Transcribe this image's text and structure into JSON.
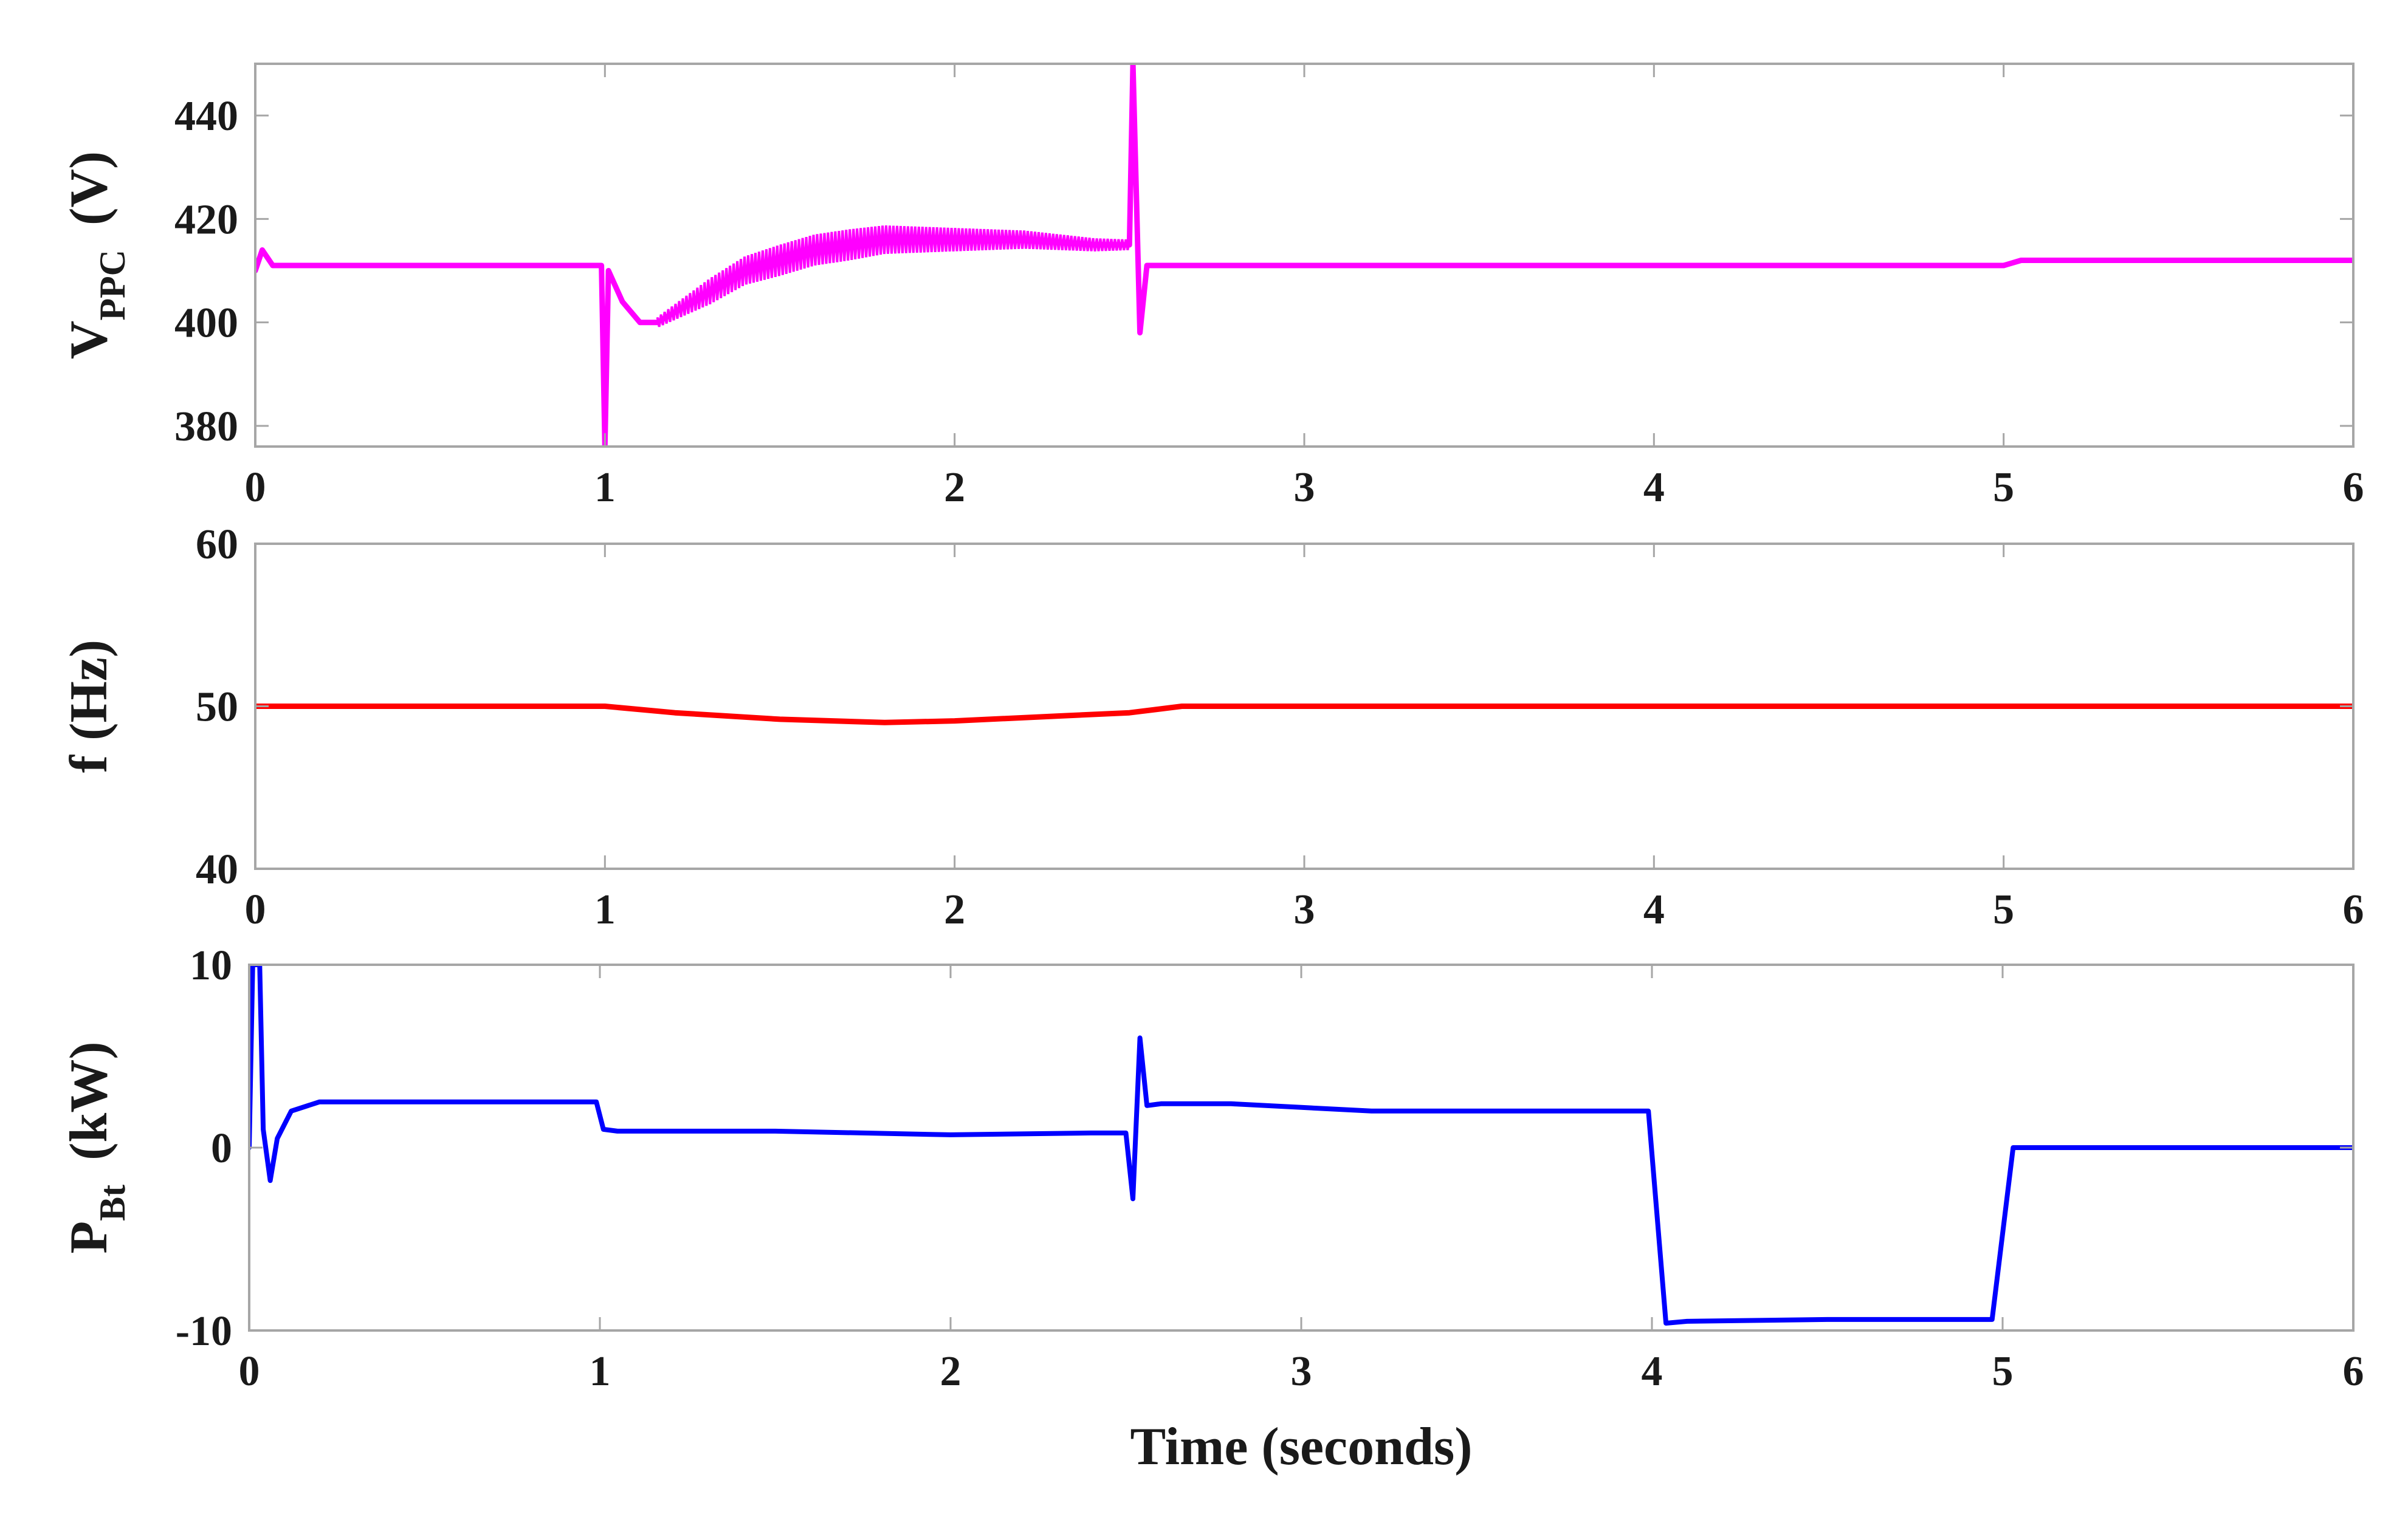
{
  "chart_data": [
    {
      "type": "line",
      "ylabel_main": "V",
      "ylabel_sub": "PPC",
      "ylabel_unit": "(V)",
      "xlim": [
        0,
        6
      ],
      "ylim": [
        376,
        450
      ],
      "xticks": [
        "0",
        "1",
        "2",
        "3",
        "4",
        "5",
        "6"
      ],
      "yticks": [
        "380",
        "400",
        "420",
        "440"
      ],
      "ytick_values": [
        380,
        400,
        420,
        440
      ],
      "color": "#ff00ff",
      "series": [
        {
          "x": [
            0,
            0.02,
            0.05,
            0.4,
            0.99,
            1.0,
            1.01,
            1.05,
            1.1,
            1.15,
            1.2,
            1.3,
            1.4,
            1.5,
            1.6,
            1.7,
            1.8,
            1.9,
            2.0,
            2.2,
            2.4,
            2.5,
            2.51,
            2.53,
            2.55,
            2.6,
            3.0,
            4.0,
            4.99,
            5.0,
            5.05,
            6.0
          ],
          "y": [
            410,
            414,
            411,
            411,
            411,
            376,
            410,
            404,
            400,
            400,
            402,
            406,
            410,
            412,
            414,
            415,
            416,
            416,
            416,
            416,
            415,
            415,
            450,
            398,
            411,
            411,
            411,
            411,
            411,
            411,
            412,
            412
          ]
        }
      ],
      "oscillation_band": {
        "x": [
          1.15,
          1.3,
          1.5,
          1.7,
          1.9,
          2.1,
          2.3,
          2.5
        ],
        "amplitude": [
          1,
          2.5,
          3,
          3,
          2.5,
          2,
          1.5,
          1
        ]
      }
    },
    {
      "type": "line",
      "ylabel_main": "f",
      "ylabel_sub": "",
      "ylabel_unit": "(Hz)",
      "xlim": [
        0,
        6
      ],
      "ylim": [
        40,
        60
      ],
      "xticks": [
        "0",
        "1",
        "2",
        "3",
        "4",
        "5",
        "6"
      ],
      "yticks": [
        "40",
        "50",
        "60"
      ],
      "ytick_values": [
        40,
        50,
        60
      ],
      "color": "#ff0000",
      "series": [
        {
          "x": [
            0,
            1.0,
            1.2,
            1.5,
            1.8,
            2.0,
            2.3,
            2.5,
            2.65,
            3.0,
            6.0
          ],
          "y": [
            50,
            50,
            49.6,
            49.2,
            49.0,
            49.1,
            49.4,
            49.6,
            50,
            50,
            50
          ]
        }
      ]
    },
    {
      "type": "line",
      "ylabel_main": "P",
      "ylabel_sub": "Bt",
      "ylabel_unit": "(kW)",
      "xlabel": "Time (seconds)",
      "xlim": [
        0,
        6
      ],
      "ylim": [
        -10,
        10
      ],
      "xticks": [
        "0",
        "1",
        "2",
        "3",
        "4",
        "5",
        "6"
      ],
      "yticks": [
        "-10",
        "0",
        "10"
      ],
      "ytick_values": [
        -10,
        0,
        10
      ],
      "color": "#0000ff",
      "series": [
        {
          "x": [
            0,
            0.01,
            0.03,
            0.04,
            0.06,
            0.08,
            0.12,
            0.2,
            0.5,
            0.99,
            1.01,
            1.05,
            1.5,
            2.0,
            2.4,
            2.5,
            2.52,
            2.54,
            2.56,
            2.6,
            2.8,
            3.0,
            3.2,
            3.5,
            3.8,
            3.99,
            4.04,
            4.1,
            4.5,
            4.97,
            5.03,
            5.1,
            6.0
          ],
          "y": [
            0,
            10,
            10,
            1,
            -1.8,
            0.5,
            2,
            2.5,
            2.5,
            2.5,
            1,
            0.9,
            0.9,
            0.7,
            0.8,
            0.8,
            -2.8,
            6,
            2.3,
            2.4,
            2.4,
            2.2,
            2,
            2,
            2,
            2,
            -9.6,
            -9.5,
            -9.4,
            -9.4,
            0,
            0,
            0
          ]
        }
      ]
    }
  ]
}
